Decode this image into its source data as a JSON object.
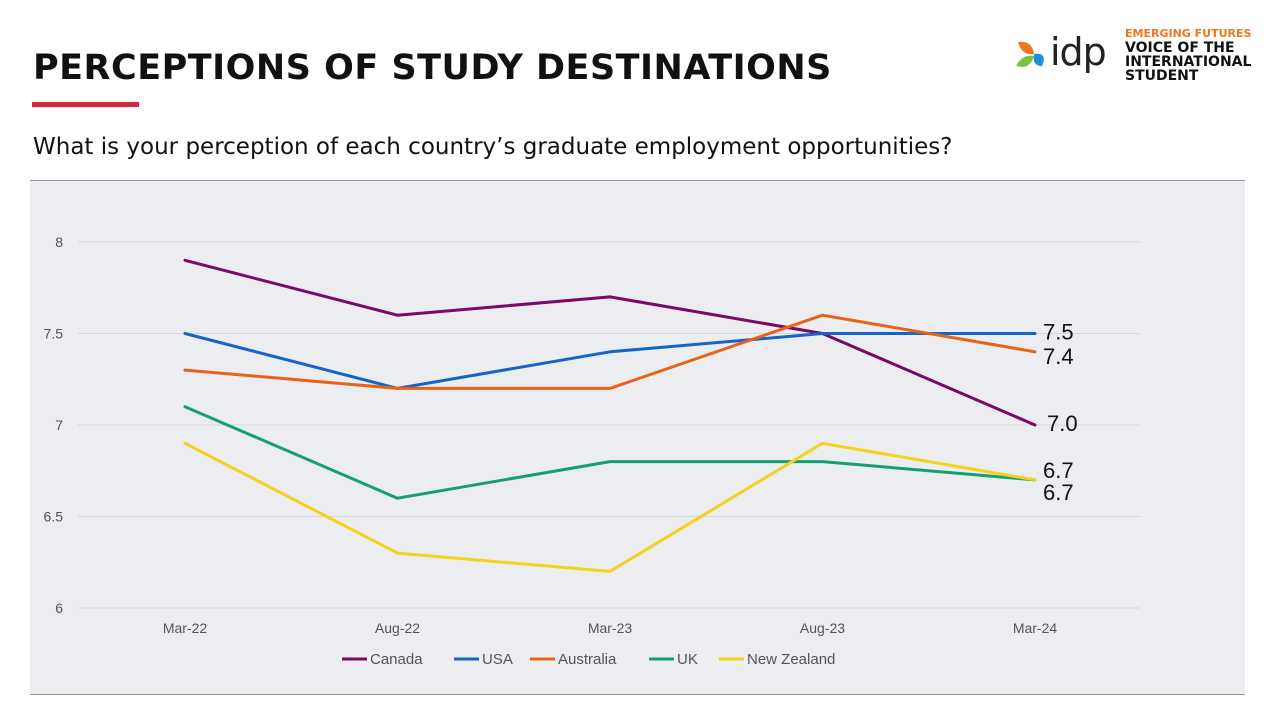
{
  "header": {
    "title": "PERCEPTIONS OF STUDY DESTINATIONS",
    "question": "What is your perception of each country’s graduate employment opportunities?"
  },
  "logo": {
    "name": "idp",
    "tagline_small": "EMERGING FUTURES",
    "tagline_lines": [
      "VOICE OF THE",
      "INTERNATIONAL",
      "STUDENT"
    ]
  },
  "colors": {
    "accent": "#d7263d",
    "brand_orange": "#f47521",
    "panel": "#ecedf0"
  },
  "chart_data": {
    "type": "line",
    "categories": [
      "Mar-22",
      "Aug-22",
      "Mar-23",
      "Aug-23",
      "Mar-24"
    ],
    "ylim": [
      6,
      8
    ],
    "yticks": [
      "6",
      "6.5",
      "7",
      "7.5",
      "8"
    ],
    "grid": true,
    "legend_position": "bottom",
    "series": [
      {
        "name": "Canada",
        "color": "#7b0a66",
        "values": [
          7.9,
          7.6,
          7.7,
          7.5,
          7.0
        ],
        "end_label": "7.0"
      },
      {
        "name": "USA",
        "color": "#1565c8",
        "values": [
          7.5,
          7.2,
          7.4,
          7.5,
          7.5
        ],
        "end_label": "7.5"
      },
      {
        "name": "Australia",
        "color": "#e8621a",
        "values": [
          7.3,
          7.2,
          7.2,
          7.6,
          7.4
        ],
        "end_label": "7.4"
      },
      {
        "name": "UK",
        "color": "#16a06e",
        "values": [
          7.1,
          6.6,
          6.8,
          6.8,
          6.7
        ],
        "end_label": "6.7"
      },
      {
        "name": "New Zealand",
        "color": "#f5d21b",
        "values": [
          6.9,
          6.3,
          6.2,
          6.9,
          6.7
        ],
        "end_label": "6.7"
      }
    ]
  }
}
